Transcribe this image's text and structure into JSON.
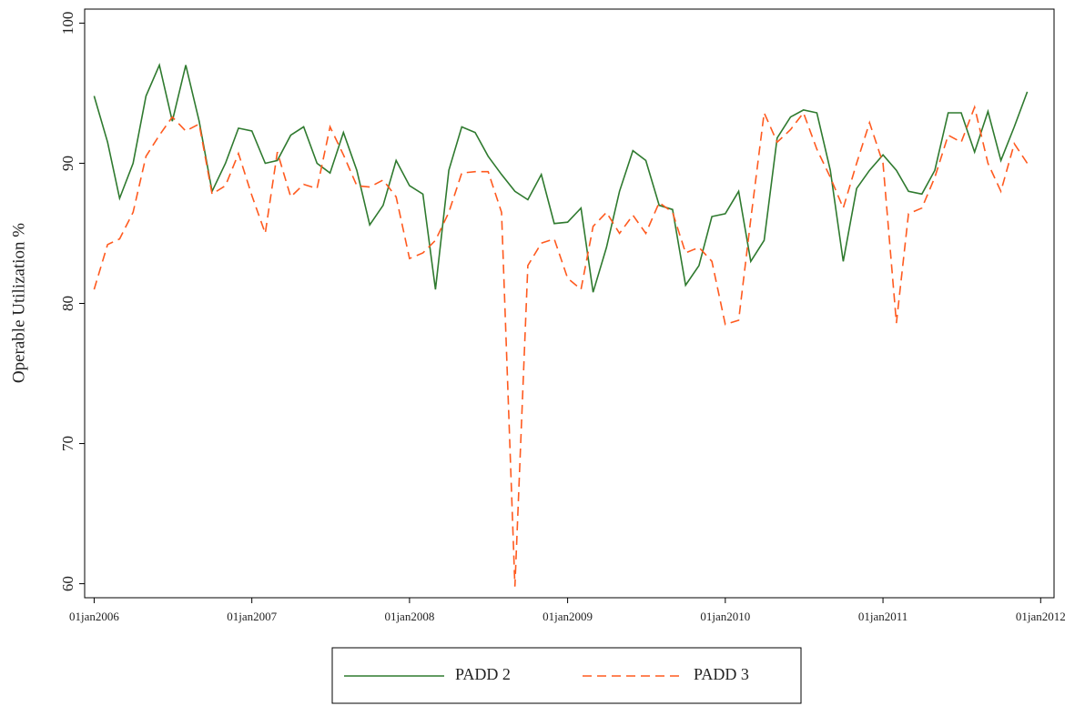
{
  "chart_data": {
    "type": "line",
    "y_label": "Operable Utilization %",
    "x": [
      "2006-01-01",
      "2006-02-01",
      "2006-03-01",
      "2006-04-01",
      "2006-05-01",
      "2006-06-01",
      "2006-07-01",
      "2006-08-01",
      "2006-09-01",
      "2006-10-01",
      "2006-11-01",
      "2006-12-01",
      "2007-01-01",
      "2007-02-01",
      "2007-03-01",
      "2007-04-01",
      "2007-05-01",
      "2007-06-01",
      "2007-07-01",
      "2007-08-01",
      "2007-09-01",
      "2007-10-01",
      "2007-11-01",
      "2007-12-01",
      "2008-01-01",
      "2008-02-01",
      "2008-03-01",
      "2008-04-01",
      "2008-05-01",
      "2008-06-01",
      "2008-07-01",
      "2008-08-01",
      "2008-09-01",
      "2008-10-01",
      "2008-11-01",
      "2008-12-01",
      "2009-01-01",
      "2009-02-01",
      "2009-03-01",
      "2009-04-01",
      "2009-05-01",
      "2009-06-01",
      "2009-07-01",
      "2009-08-01",
      "2009-09-01",
      "2009-10-01",
      "2009-11-01",
      "2009-12-01",
      "2010-01-01",
      "2010-02-01",
      "2010-03-01",
      "2010-04-01",
      "2010-05-01",
      "2010-06-01",
      "2010-07-01",
      "2010-08-01",
      "2010-09-01",
      "2010-10-01",
      "2010-11-01",
      "2010-12-01",
      "2011-01-01",
      "2011-02-01",
      "2011-03-01",
      "2011-04-01",
      "2011-05-01",
      "2011-06-01",
      "2011-07-01",
      "2011-08-01",
      "2011-09-01",
      "2011-10-01",
      "2011-11-01",
      "2011-12-01"
    ],
    "series": [
      {
        "name": "PADD 2",
        "color": "#2f7a2f",
        "style": "solid",
        "values": [
          94.8,
          91.5,
          87.5,
          90,
          94.8,
          97,
          93,
          97,
          93,
          88,
          90,
          92.5,
          92.3,
          90,
          90.2,
          92,
          92.6,
          90,
          89.3,
          92.2,
          89.5,
          85.6,
          87,
          90.2,
          88.4,
          87.8,
          81,
          89.5,
          92.6,
          92.2,
          90.5,
          89.2,
          88,
          87.4,
          89.2,
          85.7,
          85.8,
          86.8,
          80.8,
          84,
          88,
          90.9,
          90.2,
          87,
          86.7,
          81.3,
          82.7,
          86.2,
          86.4,
          88,
          83,
          84.5,
          91.8,
          93.3,
          93.8,
          93.6,
          89.5,
          83,
          88.2,
          89.5,
          90.6,
          89.5,
          88,
          87.8,
          89.5,
          93.6,
          93.6,
          90.8,
          93.7,
          90.2,
          92.6,
          95.1
        ]
      },
      {
        "name": "PADD 3",
        "color": "#ff5a1f",
        "style": "dashed",
        "values": [
          81,
          84.2,
          84.6,
          86.5,
          90.5,
          92,
          93.3,
          92.3,
          92.8,
          87.8,
          88.4,
          90.7,
          87.7,
          85,
          90.8,
          87.6,
          88.5,
          88.2,
          92.6,
          90.6,
          88.4,
          88.3,
          88.8,
          87.6,
          83.2,
          83.6,
          84.5,
          86.5,
          89.3,
          89.4,
          89.4,
          86.5,
          59.8,
          82.7,
          84.3,
          84.6,
          81.8,
          81,
          85.5,
          86.5,
          85,
          86.3,
          85,
          87.2,
          86.5,
          83.6,
          84,
          83,
          78.5,
          78.8,
          86,
          93.6,
          91.5,
          92.4,
          93.6,
          91,
          89,
          86.8,
          90,
          92.9,
          90,
          78.6,
          86.4,
          86.8,
          89,
          92,
          91.5,
          94,
          90,
          88,
          91.4,
          90
        ]
      }
    ],
    "xlim": [
      "2005-12-10",
      "2012-02-01"
    ],
    "xticks": [
      {
        "value": "2006-01-01",
        "label": "01jan2006"
      },
      {
        "value": "2007-01-01",
        "label": "01jan2007"
      },
      {
        "value": "2008-01-01",
        "label": "01jan2008"
      },
      {
        "value": "2009-01-01",
        "label": "01jan2009"
      },
      {
        "value": "2010-01-01",
        "label": "01jan2010"
      },
      {
        "value": "2011-01-01",
        "label": "01jan2011"
      },
      {
        "value": "2012-01-01",
        "label": "01jan2012"
      }
    ],
    "ylim": [
      59,
      101
    ],
    "yticks": [
      60,
      70,
      80,
      90,
      100
    ],
    "legend": "bottom"
  }
}
